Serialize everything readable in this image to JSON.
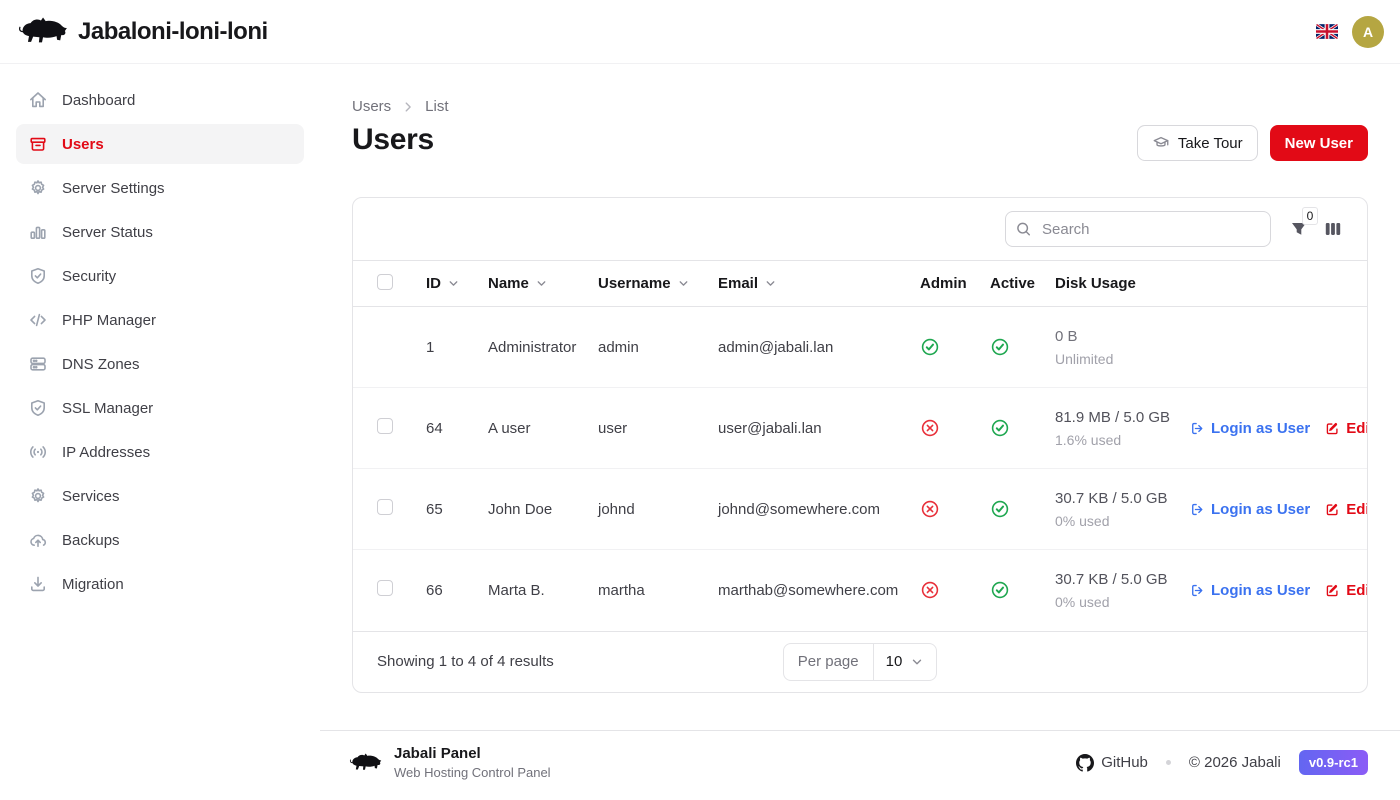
{
  "topbar": {
    "app_title": "Jabaloni-loni-loni",
    "language_flag": "uk-flag-icon",
    "avatar_initial": "A"
  },
  "sidebar": {
    "items": [
      {
        "label": "Dashboard",
        "icon": "home-icon",
        "active": false
      },
      {
        "label": "Users",
        "icon": "users-tray-icon",
        "active": true
      },
      {
        "label": "Server Settings",
        "icon": "gear-icon",
        "active": false
      },
      {
        "label": "Server Status",
        "icon": "bar-chart-icon",
        "active": false
      },
      {
        "label": "Security",
        "icon": "shield-check-icon",
        "active": false
      },
      {
        "label": "PHP Manager",
        "icon": "code-icon",
        "active": false
      },
      {
        "label": "DNS Zones",
        "icon": "server-stack-icon",
        "active": false
      },
      {
        "label": "SSL Manager",
        "icon": "shield-check-icon",
        "active": false
      },
      {
        "label": "IP Addresses",
        "icon": "signal-icon",
        "active": false
      },
      {
        "label": "Services",
        "icon": "gear-icon",
        "active": false
      },
      {
        "label": "Backups",
        "icon": "cloud-upload-icon",
        "active": false
      },
      {
        "label": "Migration",
        "icon": "download-icon",
        "active": false
      }
    ]
  },
  "page": {
    "breadcrumb": [
      "Users",
      "List"
    ],
    "title": "Users",
    "take_tour_label": "Take Tour",
    "new_user_label": "New User"
  },
  "toolbar": {
    "search_placeholder": "Search",
    "search_value": "",
    "filter_count": "0"
  },
  "table": {
    "header_labels": [
      "ID",
      "Name",
      "Username",
      "Email",
      "Admin",
      "Active",
      "Disk Usage"
    ],
    "sortable_columns": [
      "ID",
      "Name",
      "Username",
      "Email"
    ],
    "rows": [
      {
        "id": "1",
        "name": "Administrator",
        "username": "admin",
        "email": "admin@jabali.lan",
        "admin": true,
        "active": true,
        "disk_primary": "0 B",
        "disk_secondary": "Unlimited",
        "selectable": false,
        "has_actions": false
      },
      {
        "id": "64",
        "name": "A user",
        "username": "user",
        "email": "user@jabali.lan",
        "admin": false,
        "active": true,
        "disk_primary": "81.9 MB / 5.0 GB",
        "disk_secondary": "1.6% used",
        "selectable": true,
        "has_actions": true
      },
      {
        "id": "65",
        "name": "John Doe",
        "username": "johnd",
        "email": "johnd@somewhere.com",
        "admin": false,
        "active": true,
        "disk_primary": "30.7 KB / 5.0 GB",
        "disk_secondary": "0% used",
        "selectable": true,
        "has_actions": true
      },
      {
        "id": "66",
        "name": "Marta B.",
        "username": "martha",
        "email": "marthab@somewhere.com",
        "admin": false,
        "active": true,
        "disk_primary": "30.7 KB / 5.0 GB",
        "disk_secondary": "0% used",
        "selectable": true,
        "has_actions": true
      }
    ],
    "actions": {
      "login_as_user": "Login as User",
      "edit": "Edit",
      "delete_icon": "trash-icon"
    },
    "pagination": {
      "summary": "Showing 1 to 4 of 4 results",
      "per_page_label": "Per page",
      "per_page_value": "10"
    }
  },
  "footer": {
    "brand": "Jabali Panel",
    "subtitle": "Web Hosting Control Panel",
    "github_label": "GitHub",
    "copyright": "© 2026 Jabali",
    "version": "v0.9-rc1"
  },
  "colors": {
    "accent_red": "#e20a16",
    "success_green": "#1fa750",
    "link_blue": "#3b72f0",
    "avatar_bg": "#b5a642",
    "version_badge_from": "#6366f1",
    "version_badge_to": "#8b5cf6"
  }
}
